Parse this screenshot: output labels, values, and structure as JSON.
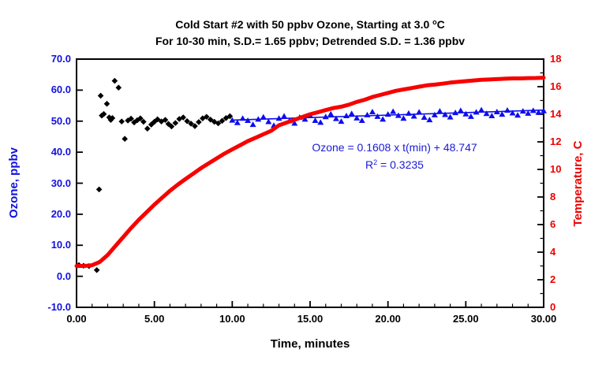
{
  "chart_data": {
    "type": "scatter",
    "title_parts": {
      "main": "Cold Start #2 with 50 ppbv Ozone, Starting at 3.0 ",
      "sup": "o",
      "after": "C"
    },
    "subtitle": "For 10-30 min, S.D.= 1.65 ppbv; Detrended  S.D. = 1.36 ppbv",
    "annotation": {
      "line1": "Ozone = 0.1608 x t(min) + 48.747",
      "r2_base": "R",
      "r2_sup": "2",
      "r2_rest": " = 0.3235",
      "color": "#1a1ad9"
    },
    "x_axis": {
      "label": "Time, minutes",
      "min": 0,
      "max": 30,
      "major_step": 5,
      "minor_step": 1,
      "tick_labels": [
        "0.00",
        "5.00",
        "10.00",
        "15.00",
        "20.00",
        "25.00",
        "30.00"
      ],
      "color": "#000000"
    },
    "y_left": {
      "label": "Ozone, ppbv",
      "min": -10,
      "max": 70,
      "major_step": 10,
      "tick_labels": [
        "70.0",
        "60.0",
        "50.0",
        "40.0",
        "30.0",
        "20.0",
        "10.0",
        "0.0",
        "-10.0"
      ],
      "color": "#1212dd"
    },
    "y_right": {
      "label": "Temperature, C",
      "min": 0,
      "max": 18,
      "major_step": 2,
      "minor_step": 1,
      "tick_labels": [
        "18",
        "16",
        "14",
        "12",
        "10",
        "8",
        "6",
        "4",
        "2",
        "0"
      ],
      "color": "#ee0000"
    },
    "grid": false,
    "legend": false,
    "series": [
      {
        "name": "ozone-startup",
        "type": "scatter",
        "marker": "diamond",
        "axis": "left",
        "color": "#000000",
        "points": [
          [
            0.15,
            3.6
          ],
          [
            0.45,
            3.4
          ],
          [
            0.8,
            3.3
          ],
          [
            1.3,
            2.0
          ],
          [
            1.45,
            28.0
          ],
          [
            1.55,
            58.2
          ],
          [
            1.62,
            51.8
          ],
          [
            1.75,
            52.3
          ],
          [
            1.95,
            55.6
          ],
          [
            2.1,
            51.2
          ],
          [
            2.2,
            50.4
          ],
          [
            2.3,
            51.0
          ],
          [
            2.45,
            63.0
          ],
          [
            2.7,
            60.8
          ],
          [
            2.9,
            49.9
          ],
          [
            3.1,
            44.3
          ],
          [
            3.3,
            50.2
          ],
          [
            3.5,
            50.8
          ],
          [
            3.7,
            49.6
          ],
          [
            3.9,
            50.3
          ],
          [
            4.1,
            50.9
          ],
          [
            4.3,
            49.8
          ],
          [
            4.55,
            47.6
          ],
          [
            4.8,
            48.9
          ],
          [
            5.0,
            49.8
          ],
          [
            5.2,
            50.6
          ],
          [
            5.45,
            49.9
          ],
          [
            5.7,
            50.4
          ],
          [
            5.9,
            49.1
          ],
          [
            6.1,
            48.3
          ],
          [
            6.35,
            49.4
          ],
          [
            6.6,
            50.7
          ],
          [
            6.85,
            51.2
          ],
          [
            7.1,
            50.0
          ],
          [
            7.35,
            49.2
          ],
          [
            7.6,
            48.4
          ],
          [
            7.85,
            49.7
          ],
          [
            8.1,
            50.9
          ],
          [
            8.35,
            51.4
          ],
          [
            8.6,
            50.5
          ],
          [
            8.85,
            49.8
          ],
          [
            9.1,
            49.3
          ],
          [
            9.35,
            50.1
          ],
          [
            9.6,
            51.0
          ],
          [
            9.85,
            51.6
          ]
        ]
      },
      {
        "name": "ozone-fit-line",
        "type": "line",
        "axis": "left",
        "color": "#0d0def",
        "width": 1.6,
        "slope": 0.1608,
        "intercept": 48.747,
        "points": [
          [
            10,
            50.355
          ],
          [
            30,
            53.571
          ]
        ]
      },
      {
        "name": "ozone-detrended",
        "type": "scatter",
        "marker": "triangle",
        "axis": "left",
        "color": "#0d0def",
        "points": [
          [
            10.0,
            50.3
          ],
          [
            10.33,
            49.5
          ],
          [
            10.67,
            50.9
          ],
          [
            11.0,
            50.2
          ],
          [
            11.33,
            48.9
          ],
          [
            11.67,
            50.6
          ],
          [
            12.0,
            51.3
          ],
          [
            12.33,
            49.8
          ],
          [
            12.67,
            48.6
          ],
          [
            13.0,
            50.9
          ],
          [
            13.33,
            51.6
          ],
          [
            13.67,
            50.1
          ],
          [
            14.0,
            49.3
          ],
          [
            14.33,
            51.2
          ],
          [
            14.67,
            50.6
          ],
          [
            15.0,
            51.8
          ],
          [
            15.33,
            50.2
          ],
          [
            15.67,
            49.6
          ],
          [
            16.0,
            51.4
          ],
          [
            16.33,
            52.3
          ],
          [
            16.67,
            50.8
          ],
          [
            17.0,
            49.9
          ],
          [
            17.33,
            51.7
          ],
          [
            17.67,
            52.4
          ],
          [
            18.0,
            51.0
          ],
          [
            18.33,
            50.2
          ],
          [
            18.67,
            52.0
          ],
          [
            19.0,
            53.0
          ],
          [
            19.33,
            51.5
          ],
          [
            19.67,
            50.6
          ],
          [
            20.0,
            52.2
          ],
          [
            20.33,
            53.1
          ],
          [
            20.67,
            51.8
          ],
          [
            21.0,
            50.9
          ],
          [
            21.33,
            52.5
          ],
          [
            21.67,
            51.6
          ],
          [
            22.0,
            52.9
          ],
          [
            22.33,
            51.2
          ],
          [
            22.67,
            50.4
          ],
          [
            23.0,
            52.0
          ],
          [
            23.33,
            53.2
          ],
          [
            23.67,
            52.1
          ],
          [
            24.0,
            51.3
          ],
          [
            24.33,
            52.7
          ],
          [
            24.67,
            53.4
          ],
          [
            25.0,
            52.3
          ],
          [
            25.33,
            51.5
          ],
          [
            25.67,
            52.9
          ],
          [
            26.0,
            53.6
          ],
          [
            26.33,
            52.4
          ],
          [
            26.67,
            51.7
          ],
          [
            27.0,
            53.0
          ],
          [
            27.33,
            52.2
          ],
          [
            27.67,
            53.5
          ],
          [
            28.0,
            52.6
          ],
          [
            28.33,
            51.9
          ],
          [
            28.67,
            53.2
          ],
          [
            29.0,
            52.5
          ],
          [
            29.33,
            53.4
          ],
          [
            29.67,
            52.8
          ],
          [
            30.0,
            53.3
          ]
        ]
      },
      {
        "name": "temperature",
        "type": "line",
        "axis": "right",
        "color": "#f70000",
        "width": 5,
        "points": [
          [
            0.0,
            3.0
          ],
          [
            0.5,
            3.0
          ],
          [
            1.0,
            3.05
          ],
          [
            1.5,
            3.3
          ],
          [
            2.0,
            3.8
          ],
          [
            2.5,
            4.45
          ],
          [
            3.0,
            5.1
          ],
          [
            3.5,
            5.75
          ],
          [
            4.0,
            6.35
          ],
          [
            4.5,
            6.9
          ],
          [
            5.0,
            7.45
          ],
          [
            5.5,
            7.95
          ],
          [
            6.0,
            8.45
          ],
          [
            6.5,
            8.9
          ],
          [
            7.0,
            9.3
          ],
          [
            7.5,
            9.7
          ],
          [
            8.0,
            10.1
          ],
          [
            8.5,
            10.45
          ],
          [
            9.0,
            10.8
          ],
          [
            9.5,
            11.15
          ],
          [
            10.0,
            11.45
          ],
          [
            10.5,
            11.75
          ],
          [
            11.0,
            12.05
          ],
          [
            11.5,
            12.3
          ],
          [
            12.0,
            12.55
          ],
          [
            12.5,
            12.8
          ],
          [
            13.0,
            13.2
          ],
          [
            13.5,
            13.4
          ],
          [
            14.0,
            13.6
          ],
          [
            14.5,
            13.8
          ],
          [
            15.0,
            14.0
          ],
          [
            15.5,
            14.15
          ],
          [
            16.0,
            14.3
          ],
          [
            16.5,
            14.45
          ],
          [
            17.0,
            14.55
          ],
          [
            17.5,
            14.7
          ],
          [
            18.0,
            14.9
          ],
          [
            18.5,
            15.05
          ],
          [
            19.0,
            15.25
          ],
          [
            19.5,
            15.4
          ],
          [
            20.0,
            15.55
          ],
          [
            20.5,
            15.7
          ],
          [
            21.0,
            15.8
          ],
          [
            21.5,
            15.9
          ],
          [
            22.0,
            16.0
          ],
          [
            22.5,
            16.1
          ],
          [
            23.0,
            16.15
          ],
          [
            23.5,
            16.22
          ],
          [
            24.0,
            16.3
          ],
          [
            24.5,
            16.35
          ],
          [
            25.0,
            16.4
          ],
          [
            25.5,
            16.45
          ],
          [
            26.0,
            16.5
          ],
          [
            26.5,
            16.52
          ],
          [
            27.0,
            16.55
          ],
          [
            27.5,
            16.58
          ],
          [
            28.0,
            16.6
          ],
          [
            28.5,
            16.6
          ],
          [
            29.0,
            16.62
          ],
          [
            29.5,
            16.63
          ],
          [
            30.0,
            16.65
          ]
        ]
      }
    ]
  }
}
